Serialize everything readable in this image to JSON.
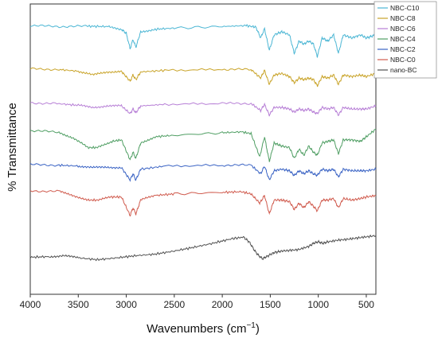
{
  "chart_data": {
    "type": "line",
    "title": "",
    "xlabel_main": "Wavenumbers (cm",
    "xlabel_sup": "−1",
    "xlabel_close": ")",
    "ylabel": "% Transmittance",
    "xlim": [
      4000,
      400
    ],
    "x_reversed": true,
    "y_tick_labels": false,
    "grid": false,
    "legend_position": "top-right",
    "x_ticks": [
      4000,
      3500,
      3000,
      2500,
      2000,
      1500,
      1000,
      500
    ],
    "series": [
      {
        "name": "NBC-C10",
        "color": "#4bb6d4",
        "offset": 7.5,
        "points": [
          [
            4000,
            0
          ],
          [
            3700,
            -0.03
          ],
          [
            3400,
            -0.02
          ],
          [
            3200,
            -0.03
          ],
          [
            3050,
            -0.12
          ],
          [
            3000,
            -0.25
          ],
          [
            2960,
            -0.75
          ],
          [
            2930,
            -0.45
          ],
          [
            2900,
            -0.7
          ],
          [
            2850,
            -0.2
          ],
          [
            2700,
            -0.12
          ],
          [
            2500,
            -0.08
          ],
          [
            2000,
            -0.03
          ],
          [
            1750,
            0
          ],
          [
            1650,
            -0.05
          ],
          [
            1600,
            -0.4
          ],
          [
            1560,
            -0.1
          ],
          [
            1510,
            -0.8
          ],
          [
            1460,
            -0.3
          ],
          [
            1380,
            -0.2
          ],
          [
            1300,
            -0.3
          ],
          [
            1250,
            -0.9
          ],
          [
            1200,
            -0.5
          ],
          [
            1150,
            -0.6
          ],
          [
            1100,
            -0.5
          ],
          [
            1050,
            -0.6
          ],
          [
            1010,
            -1.0
          ],
          [
            960,
            -0.4
          ],
          [
            900,
            -0.5
          ],
          [
            840,
            -0.3
          ],
          [
            790,
            -0.9
          ],
          [
            740,
            -0.3
          ],
          [
            650,
            -0.4
          ],
          [
            560,
            -0.3
          ],
          [
            500,
            -0.4
          ],
          [
            450,
            -0.35
          ],
          [
            400,
            -0.3
          ]
        ]
      },
      {
        "name": "NBC-C8",
        "color": "#c9a42a",
        "offset": 6.1,
        "points": [
          [
            4000,
            0
          ],
          [
            3700,
            -0.02
          ],
          [
            3500,
            -0.08
          ],
          [
            3350,
            -0.2
          ],
          [
            3200,
            -0.1
          ],
          [
            3050,
            -0.08
          ],
          [
            2960,
            -0.4
          ],
          [
            2930,
            -0.2
          ],
          [
            2900,
            -0.35
          ],
          [
            2850,
            -0.1
          ],
          [
            2600,
            -0.05
          ],
          [
            2000,
            -0.02
          ],
          [
            1700,
            -0.02
          ],
          [
            1600,
            -0.3
          ],
          [
            1560,
            -0.05
          ],
          [
            1510,
            -0.5
          ],
          [
            1460,
            -0.2
          ],
          [
            1380,
            -0.15
          ],
          [
            1300,
            -0.25
          ],
          [
            1250,
            -0.45
          ],
          [
            1200,
            -0.3
          ],
          [
            1150,
            -0.35
          ],
          [
            1100,
            -0.3
          ],
          [
            1050,
            -0.35
          ],
          [
            1010,
            -0.55
          ],
          [
            960,
            -0.25
          ],
          [
            900,
            -0.3
          ],
          [
            840,
            -0.2
          ],
          [
            790,
            -0.5
          ],
          [
            740,
            -0.2
          ],
          [
            650,
            -0.25
          ],
          [
            560,
            -0.2
          ],
          [
            500,
            -0.25
          ],
          [
            400,
            -0.15
          ]
        ]
      },
      {
        "name": "NBC-C6",
        "color": "#b77fd6",
        "offset": 5.0,
        "points": [
          [
            4000,
            0
          ],
          [
            3700,
            -0.03
          ],
          [
            3500,
            -0.08
          ],
          [
            3350,
            -0.15
          ],
          [
            3200,
            -0.1
          ],
          [
            3050,
            -0.1
          ],
          [
            2960,
            -0.35
          ],
          [
            2930,
            -0.2
          ],
          [
            2900,
            -0.32
          ],
          [
            2850,
            -0.1
          ],
          [
            2600,
            -0.05
          ],
          [
            2000,
            -0.02
          ],
          [
            1700,
            -0.02
          ],
          [
            1600,
            -0.25
          ],
          [
            1560,
            -0.05
          ],
          [
            1510,
            -0.4
          ],
          [
            1460,
            -0.15
          ],
          [
            1380,
            -0.15
          ],
          [
            1300,
            -0.2
          ],
          [
            1250,
            -0.3
          ],
          [
            1200,
            -0.2
          ],
          [
            1150,
            -0.25
          ],
          [
            1100,
            -0.2
          ],
          [
            1050,
            -0.3
          ],
          [
            1010,
            -0.35
          ],
          [
            960,
            -0.15
          ],
          [
            900,
            -0.2
          ],
          [
            840,
            -0.15
          ],
          [
            790,
            -0.4
          ],
          [
            740,
            -0.15
          ],
          [
            650,
            -0.2
          ],
          [
            560,
            -0.2
          ],
          [
            500,
            -0.2
          ],
          [
            400,
            -0.1
          ]
        ]
      },
      {
        "name": "NBC-C4",
        "color": "#4f9e63",
        "offset": 4.1,
        "points": [
          [
            4000,
            0
          ],
          [
            3700,
            -0.05
          ],
          [
            3550,
            -0.25
          ],
          [
            3400,
            -0.55
          ],
          [
            3300,
            -0.55
          ],
          [
            3150,
            -0.35
          ],
          [
            3050,
            -0.3
          ],
          [
            2960,
            -0.95
          ],
          [
            2930,
            -0.7
          ],
          [
            2900,
            -0.9
          ],
          [
            2850,
            -0.4
          ],
          [
            2700,
            -0.2
          ],
          [
            2500,
            -0.15
          ],
          [
            2000,
            -0.07
          ],
          [
            1800,
            -0.04
          ],
          [
            1700,
            -0.1
          ],
          [
            1610,
            -0.85
          ],
          [
            1560,
            -0.2
          ],
          [
            1510,
            -1.0
          ],
          [
            1460,
            -0.4
          ],
          [
            1380,
            -0.5
          ],
          [
            1300,
            -0.55
          ],
          [
            1250,
            -0.9
          ],
          [
            1200,
            -0.6
          ],
          [
            1150,
            -0.8
          ],
          [
            1100,
            -0.5
          ],
          [
            1050,
            -0.7
          ],
          [
            1010,
            -0.8
          ],
          [
            960,
            -0.4
          ],
          [
            900,
            -0.35
          ],
          [
            840,
            -0.3
          ],
          [
            790,
            -0.75
          ],
          [
            740,
            -0.3
          ],
          [
            650,
            -0.3
          ],
          [
            560,
            -0.35
          ],
          [
            500,
            -0.2
          ],
          [
            400,
            0.05
          ]
        ]
      },
      {
        "name": "NBC-C2",
        "color": "#3a63c4",
        "offset": 3.0,
        "points": [
          [
            4000,
            0
          ],
          [
            3700,
            -0.02
          ],
          [
            3500,
            -0.05
          ],
          [
            3350,
            -0.1
          ],
          [
            3200,
            -0.08
          ],
          [
            3050,
            -0.1
          ],
          [
            2960,
            -0.5
          ],
          [
            2930,
            -0.3
          ],
          [
            2900,
            -0.5
          ],
          [
            2850,
            -0.15
          ],
          [
            2600,
            -0.05
          ],
          [
            2000,
            -0.02
          ],
          [
            1700,
            -0.02
          ],
          [
            1600,
            -0.3
          ],
          [
            1560,
            -0.05
          ],
          [
            1510,
            -0.5
          ],
          [
            1460,
            -0.2
          ],
          [
            1380,
            -0.15
          ],
          [
            1300,
            -0.2
          ],
          [
            1250,
            -0.35
          ],
          [
            1200,
            -0.2
          ],
          [
            1150,
            -0.3
          ],
          [
            1100,
            -0.2
          ],
          [
            1050,
            -0.3
          ],
          [
            1010,
            -0.35
          ],
          [
            960,
            -0.15
          ],
          [
            900,
            -0.2
          ],
          [
            840,
            -0.15
          ],
          [
            790,
            -0.4
          ],
          [
            740,
            -0.15
          ],
          [
            650,
            -0.2
          ],
          [
            560,
            -0.2
          ],
          [
            500,
            -0.2
          ],
          [
            400,
            -0.15
          ]
        ]
      },
      {
        "name": "NBC-C0",
        "color": "#d05b4e",
        "offset": 2.15,
        "points": [
          [
            4000,
            0
          ],
          [
            3700,
            -0.02
          ],
          [
            3550,
            -0.15
          ],
          [
            3400,
            -0.3
          ],
          [
            3300,
            -0.3
          ],
          [
            3150,
            -0.2
          ],
          [
            3050,
            -0.2
          ],
          [
            2960,
            -0.8
          ],
          [
            2930,
            -0.55
          ],
          [
            2900,
            -0.75
          ],
          [
            2850,
            -0.3
          ],
          [
            2700,
            -0.15
          ],
          [
            2500,
            -0.1
          ],
          [
            2000,
            -0.05
          ],
          [
            1800,
            -0.03
          ],
          [
            1700,
            -0.1
          ],
          [
            1610,
            -0.4
          ],
          [
            1560,
            -0.15
          ],
          [
            1510,
            -0.75
          ],
          [
            1460,
            -0.3
          ],
          [
            1380,
            -0.3
          ],
          [
            1300,
            -0.35
          ],
          [
            1250,
            -0.6
          ],
          [
            1200,
            -0.4
          ],
          [
            1150,
            -0.55
          ],
          [
            1100,
            -0.35
          ],
          [
            1050,
            -0.5
          ],
          [
            1010,
            -0.65
          ],
          [
            960,
            -0.3
          ],
          [
            900,
            -0.3
          ],
          [
            840,
            -0.25
          ],
          [
            790,
            -0.55
          ],
          [
            740,
            -0.25
          ],
          [
            650,
            -0.3
          ],
          [
            560,
            -0.25
          ],
          [
            500,
            -0.2
          ],
          [
            400,
            -0.15
          ]
        ]
      },
      {
        "name": "nano-BC",
        "color": "#505050",
        "offset": 0.0,
        "points": [
          [
            4000,
            0
          ],
          [
            3800,
            0.02
          ],
          [
            3650,
            0.05
          ],
          [
            3500,
            -0.02
          ],
          [
            3300,
            -0.08
          ],
          [
            3100,
            -0.02
          ],
          [
            2900,
            0.05
          ],
          [
            2700,
            0.1
          ],
          [
            2500,
            0.2
          ],
          [
            2300,
            0.32
          ],
          [
            2100,
            0.45
          ],
          [
            1900,
            0.6
          ],
          [
            1780,
            0.65
          ],
          [
            1720,
            0.5
          ],
          [
            1660,
            0.2
          ],
          [
            1620,
            0.05
          ],
          [
            1580,
            -0.05
          ],
          [
            1520,
            0.05
          ],
          [
            1460,
            0.15
          ],
          [
            1380,
            0.2
          ],
          [
            1300,
            0.22
          ],
          [
            1200,
            0.25
          ],
          [
            1100,
            0.35
          ],
          [
            1050,
            0.45
          ],
          [
            1000,
            0.5
          ],
          [
            950,
            0.45
          ],
          [
            900,
            0.5
          ],
          [
            800,
            0.55
          ],
          [
            700,
            0.58
          ],
          [
            600,
            0.62
          ],
          [
            500,
            0.66
          ],
          [
            400,
            0.7
          ]
        ]
      }
    ]
  }
}
